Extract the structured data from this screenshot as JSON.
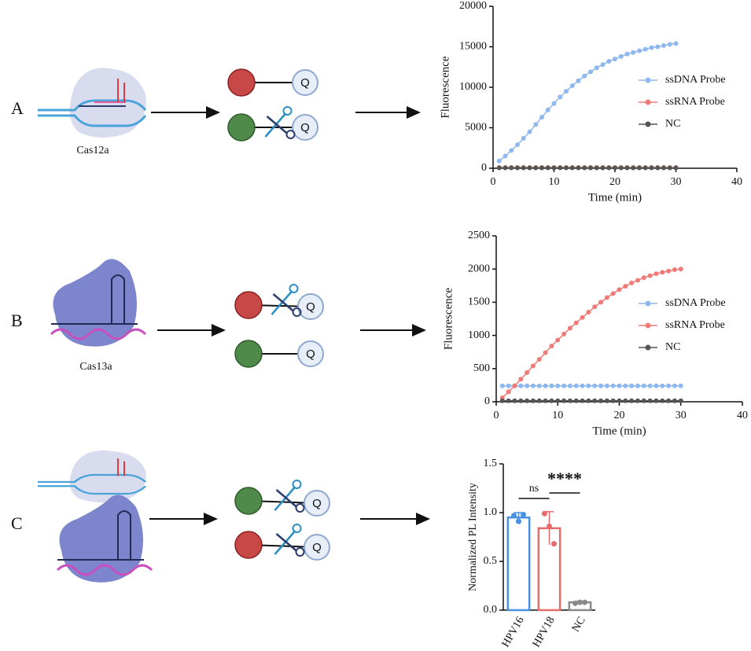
{
  "panels": [
    {
      "label": "A",
      "enzyme": "Cas12a"
    },
    {
      "label": "B",
      "enzyme": "Cas13a"
    },
    {
      "label": "C"
    }
  ],
  "reporter_label": "Q",
  "chart_data": [
    {
      "type": "line",
      "xlabel": "Time (min)",
      "ylabel": "Fluorescence",
      "x": [
        1,
        2,
        3,
        4,
        5,
        6,
        7,
        8,
        9,
        10,
        11,
        12,
        13,
        14,
        15,
        16,
        17,
        18,
        19,
        20,
        21,
        22,
        23,
        24,
        25,
        26,
        27,
        28,
        29,
        30
      ],
      "xlim": [
        0,
        40
      ],
      "xticks": [
        0,
        10,
        20,
        30,
        40
      ],
      "ylim": [
        0,
        20000
      ],
      "yticks": [
        0,
        5000,
        10000,
        15000,
        20000
      ],
      "legend": "right",
      "series": [
        {
          "name": "ssDNA Probe",
          "color": "#8fb8ee",
          "values": [
            900,
            1500,
            2200,
            2900,
            3700,
            4500,
            5400,
            6300,
            7200,
            8000,
            8800,
            9500,
            10200,
            10800,
            11400,
            11900,
            12400,
            12800,
            13200,
            13500,
            13800,
            14100,
            14300,
            14500,
            14700,
            14900,
            15000,
            15150,
            15300,
            15400
          ]
        },
        {
          "name": "ssRNA Probe",
          "color": "#ee7b78",
          "values": [
            100,
            100,
            100,
            100,
            100,
            100,
            100,
            100,
            100,
            100,
            100,
            100,
            100,
            100,
            100,
            100,
            100,
            100,
            100,
            100,
            100,
            100,
            100,
            100,
            100,
            100,
            100,
            100,
            100,
            100
          ]
        },
        {
          "name": "NC",
          "color": "#555555",
          "values": [
            50,
            50,
            50,
            50,
            50,
            50,
            50,
            50,
            50,
            50,
            50,
            50,
            50,
            50,
            50,
            50,
            50,
            50,
            50,
            50,
            50,
            50,
            50,
            50,
            50,
            50,
            50,
            50,
            50,
            50
          ]
        }
      ]
    },
    {
      "type": "line",
      "xlabel": "Time (min)",
      "ylabel": "Fluorescence",
      "x": [
        1,
        2,
        3,
        4,
        5,
        6,
        7,
        8,
        9,
        10,
        11,
        12,
        13,
        14,
        15,
        16,
        17,
        18,
        19,
        20,
        21,
        22,
        23,
        24,
        25,
        26,
        27,
        28,
        29,
        30
      ],
      "xlim": [
        0,
        40
      ],
      "xticks": [
        0,
        10,
        20,
        30,
        40
      ],
      "ylim": [
        0,
        2500
      ],
      "yticks": [
        0,
        500,
        1000,
        1500,
        2000,
        2500
      ],
      "legend": "right",
      "series": [
        {
          "name": "ssDNA Probe",
          "color": "#8fb8ee",
          "values": [
            240,
            240,
            240,
            240,
            240,
            240,
            240,
            240,
            240,
            240,
            240,
            240,
            240,
            240,
            240,
            240,
            240,
            240,
            240,
            240,
            240,
            240,
            240,
            240,
            240,
            240,
            240,
            240,
            240,
            240
          ]
        },
        {
          "name": "ssRNA Probe",
          "color": "#ee7b78",
          "values": [
            60,
            150,
            240,
            340,
            440,
            540,
            640,
            740,
            840,
            930,
            1020,
            1110,
            1190,
            1270,
            1350,
            1430,
            1500,
            1570,
            1630,
            1690,
            1740,
            1790,
            1830,
            1870,
            1900,
            1930,
            1950,
            1970,
            1990,
            2000
          ]
        },
        {
          "name": "NC",
          "color": "#555555",
          "values": [
            15,
            15,
            15,
            15,
            15,
            15,
            15,
            15,
            15,
            15,
            15,
            15,
            15,
            15,
            15,
            15,
            15,
            15,
            15,
            15,
            15,
            15,
            15,
            15,
            15,
            15,
            15,
            15,
            15,
            15
          ]
        }
      ]
    },
    {
      "type": "bar",
      "ylabel": "Normalized PL Intensity",
      "categories": [
        "HPV16",
        "HPV18",
        "NC"
      ],
      "values": [
        0.95,
        0.84,
        0.08
      ],
      "errors": [
        0.05,
        0.17,
        0.01
      ],
      "points": [
        [
          0.97,
          0.91,
          0.98
        ],
        [
          0.99,
          0.86,
          0.68
        ],
        [
          0.07,
          0.08,
          0.08
        ]
      ],
      "colors": [
        "#4a90e2",
        "#e96a6a",
        "#8a8a8a"
      ],
      "ylim": [
        0,
        1.5
      ],
      "yticks": [
        {
          "value": 0,
          "label": "0.0"
        },
        0.5,
        {
          "value": 1,
          "label": "1.0"
        },
        {
          "value": 1.5,
          "label": "1.5"
        }
      ],
      "annotations": [
        "ns",
        "****"
      ]
    }
  ]
}
